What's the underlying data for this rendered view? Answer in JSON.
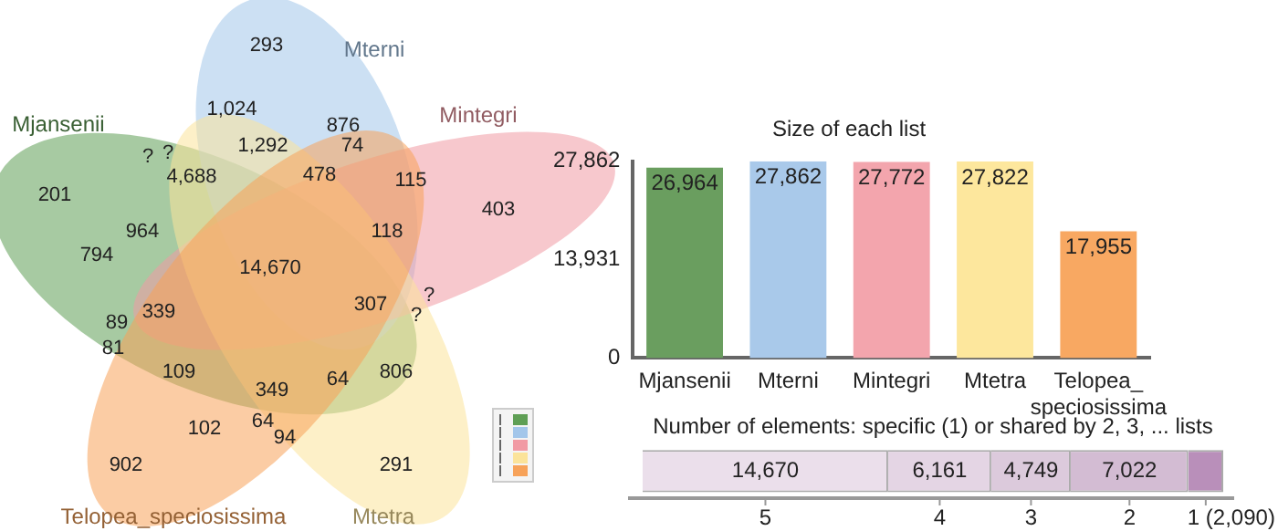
{
  "chart_data": [
    {
      "type": "other",
      "categories": [
        "Mjansenii",
        "Mterni",
        "Mintegri",
        "Mtetra",
        "Telopea_speciosissima"
      ],
      "colors": [
        "#5f9f55",
        "#a3c6ea",
        "#f19aa4",
        "#fbe39a",
        "#f7a259"
      ],
      "annotations": [
        "293",
        "1,024",
        "876",
        "1,292",
        "74",
        "?",
        "?",
        "4,688",
        "478",
        "115",
        "403",
        "201",
        "964",
        "118",
        "794",
        "14,670",
        "307",
        "?",
        "?",
        "89",
        "339",
        "81",
        "109",
        "806",
        "64",
        "349",
        "102",
        "64",
        "94",
        "902",
        "291"
      ]
    },
    {
      "type": "bar",
      "title": "Size of each list",
      "categories": [
        "Mjansenii",
        "Mterni",
        "Mintegri",
        "Mtetra",
        "Telopea_speciosissima"
      ],
      "values": [
        26964,
        27862,
        27772,
        27822,
        17955
      ],
      "colors": [
        "#6a9e5f",
        "#a9c9ea",
        "#f3a5ad",
        "#fde79d",
        "#f8a862"
      ],
      "value_labels": [
        "26,964",
        "27,862",
        "27,772",
        "27,822",
        "17,955"
      ],
      "ylim": [
        0,
        27862
      ],
      "yticks": [
        0,
        {
          "value": 13931,
          "label": "13,931"
        },
        {
          "value": 27862,
          "label": "27,862"
        }
      ]
    },
    {
      "type": "bar",
      "title": "Number of elements: specific (1) or shared by 2, 3, ... lists",
      "orientation": "horizontal",
      "stacked": true,
      "categories": [
        null
      ],
      "xlim": [
        0,
        34692
      ],
      "series": [
        {
          "name": "5",
          "color": "#ebdfeb",
          "values": [
            14670
          ],
          "value_labels": [
            "14,670"
          ]
        },
        {
          "name": "4",
          "color": "#e4d5e4",
          "values": [
            6161
          ],
          "value_labels": [
            "6,161"
          ]
        },
        {
          "name": "3",
          "color": "#dccadc",
          "values": [
            4749
          ],
          "value_labels": [
            "4,749"
          ]
        },
        {
          "name": "2",
          "color": "#d3bcd3",
          "values": [
            7022
          ],
          "value_labels": [
            "7,022"
          ]
        },
        {
          "name": "1 (2,090)",
          "color": "#b98fba",
          "values": [
            2090
          ],
          "value_labels": [
            null
          ]
        }
      ]
    }
  ]
}
